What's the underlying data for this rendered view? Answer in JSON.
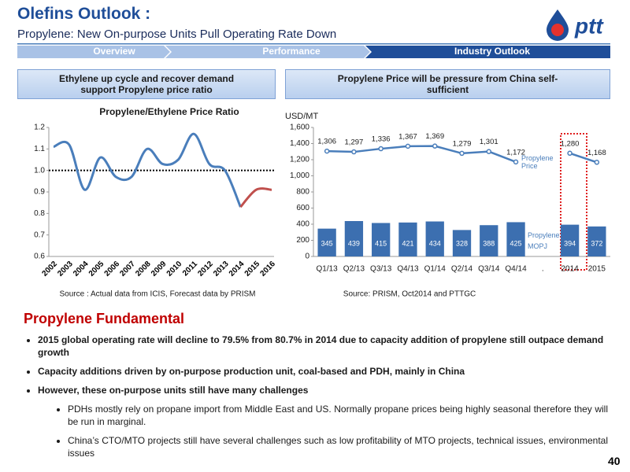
{
  "header": {
    "title": "Olefins Outlook :",
    "subtitle": "Propylene: New On-purpose Units Pull Operating Rate Down",
    "logo_text": "ptt"
  },
  "nav": [
    "Overview",
    "Performance",
    "Industry Outlook"
  ],
  "panels": [
    {
      "heading": "Ethylene up cycle and recover demand support Propylene price ratio",
      "source": "Source : Actual data from ICIS, Forecast data by PRISM"
    },
    {
      "heading": "Propylene Price will be pressure from China self-sufficient",
      "source": "Source: PRISM, Oct2014 and PTTGC"
    }
  ],
  "chart_data": [
    {
      "type": "line",
      "title": "Propylene/Ethylene Price Ratio",
      "categories": [
        "2002",
        "2003",
        "2004",
        "2005",
        "2006",
        "2007",
        "2008",
        "2009",
        "2010",
        "2011",
        "2012",
        "2013",
        "2014",
        "2015",
        "2016"
      ],
      "series": [
        {
          "name": null,
          "color": "#4a7ebb",
          "values": [
            1.11,
            1.12,
            0.91,
            1.06,
            0.97,
            0.97,
            1.1,
            1.03,
            1.05,
            1.17,
            1.03,
            1.0,
            0.83,
            null,
            null
          ]
        },
        {
          "name": null,
          "color": "#c0504d",
          "values": [
            null,
            null,
            null,
            null,
            null,
            null,
            null,
            null,
            null,
            null,
            null,
            null,
            0.83,
            0.91,
            0.91
          ]
        }
      ],
      "ylim": [
        0.6,
        1.2
      ],
      "yticks": [
        0.6,
        0.7,
        0.8,
        0.9,
        {
          "value": 1,
          "label": "1.0"
        },
        1.1,
        1.2
      ],
      "reference_line": 1,
      "grid": false
    },
    {
      "type": "bar",
      "ylabel": "USD/MT",
      "categories": [
        "Q1/13",
        "Q2/13",
        "Q3/13",
        "Q4/13",
        "Q1/14",
        "Q2/14",
        "Q3/14",
        "Q4/14",
        ".",
        "2014",
        "2015"
      ],
      "series": [
        {
          "name": "Propylene MOPJ",
          "type": "bar",
          "color": "#3c6fb0",
          "values": [
            345,
            439,
            415,
            421,
            434,
            328,
            388,
            425,
            null,
            394,
            372
          ]
        },
        {
          "name": "Propylene Price",
          "type": "line",
          "color": "#4a7ebb",
          "values": [
            1306,
            1297,
            1336,
            1367,
            1369,
            1279,
            1301,
            1172,
            null,
            1280,
            1168
          ],
          "value_labels": [
            "1,306",
            "1,297",
            "1,336",
            "1,367",
            "1,369",
            "1,279",
            "1,301",
            "1,172",
            null,
            "1,280",
            "1,168"
          ]
        }
      ],
      "ylim": [
        0,
        1600
      ],
      "yticks": [
        0,
        200,
        400,
        600,
        800,
        {
          "value": 1000,
          "label": "1,000"
        },
        {
          "value": 1200,
          "label": "1,200"
        },
        {
          "value": 1400,
          "label": "1,400"
        },
        {
          "value": 1600,
          "label": "1,600"
        }
      ],
      "grid": false
    }
  ],
  "fundamentals": {
    "heading": "Propylene Fundamental",
    "bullets": [
      "2015 global operating rate will decline to 79.5% from 80.7% in 2014 due to capacity addition of propylene still outpace demand growth",
      "Capacity additions driven by on-purpose production unit, coal-based and PDH, mainly in China",
      "However, these on-purpose units still have many challenges"
    ],
    "sub_bullets": [
      "PDHs mostly rely on propane import from Middle East and US. Normally propane prices being highly seasonal therefore they will be run in marginal.",
      "China’s CTO/MTO projects still have several challenges such as low profitability of MTO projects, technical issues, environmental issues"
    ]
  },
  "page_number": "40"
}
